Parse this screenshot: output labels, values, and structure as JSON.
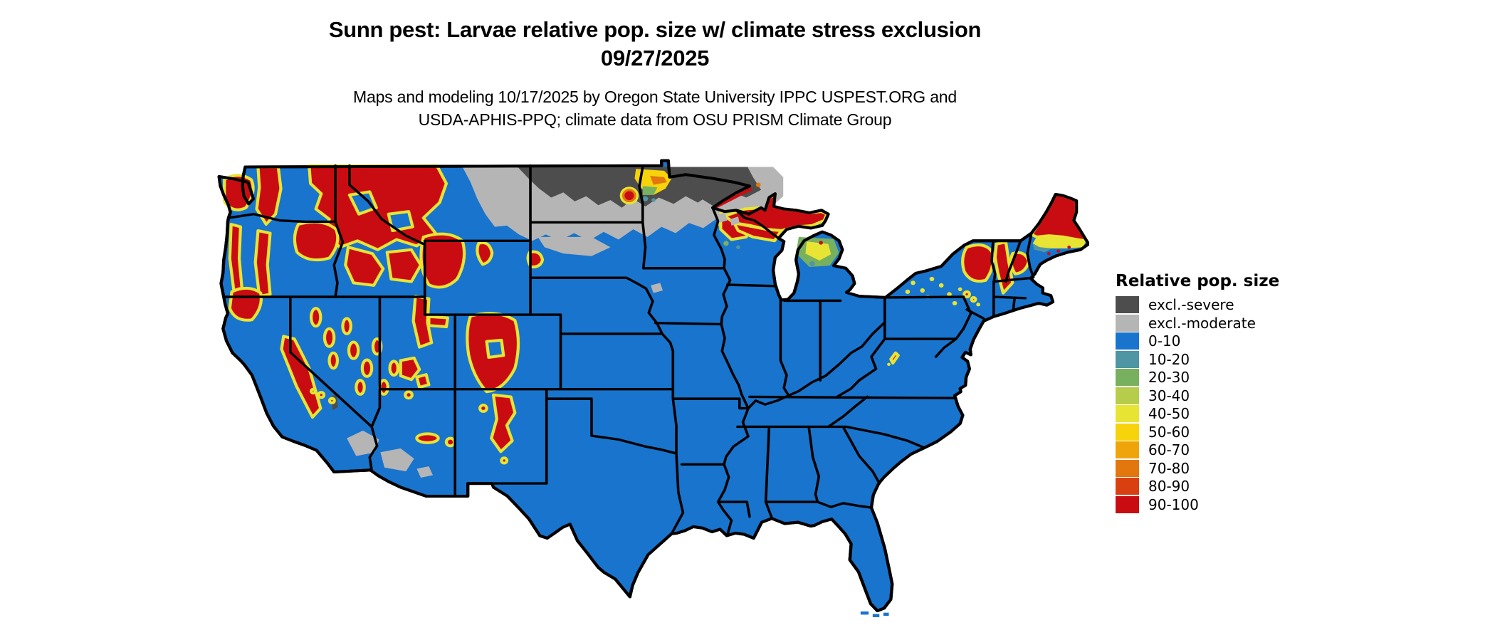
{
  "title": {
    "line1": "Sunn pest: Larvae relative pop. size w/ climate stress exclusion",
    "line2": "09/27/2025"
  },
  "subtitle": {
    "line1": "Maps and modeling 10/17/2025 by Oregon State University IPPC USPEST.ORG and",
    "line2": "USDA-APHIS-PPQ; climate data from OSU PRISM Climate Group"
  },
  "legend": {
    "title": "Relative pop. size",
    "items": [
      {
        "label": "excl.-severe",
        "color": "#4D4D4D"
      },
      {
        "label": "excl.-moderate",
        "color": "#B5B5B5"
      },
      {
        "label": "0-10",
        "color": "#1874CD"
      },
      {
        "label": "10-20",
        "color": "#4F95A3"
      },
      {
        "label": "20-30",
        "color": "#77B05F"
      },
      {
        "label": "30-40",
        "color": "#B6CC4B"
      },
      {
        "label": "40-50",
        "color": "#E8E434"
      },
      {
        "label": "50-60",
        "color": "#F6D30B"
      },
      {
        "label": "60-70",
        "color": "#EFA50A"
      },
      {
        "label": "70-80",
        "color": "#E2770D"
      },
      {
        "label": "80-90",
        "color": "#D9400F"
      },
      {
        "label": "90-100",
        "color": "#C90C11"
      }
    ]
  },
  "map": {
    "area": "Contiguous United States with state boundaries",
    "border_color": "#000000",
    "water_color": "#FFFFFF",
    "base_fill_category": "0-10",
    "visible_patterns": [
      {
        "region": "Most of central, southern and eastern US",
        "category": "0-10"
      },
      {
        "region": "Pacific Northwest mountains, N Idaho, W Montana",
        "category": "90-100"
      },
      {
        "region": "Sierra Nevada, Nevada ranges, Utah, Colorado Rockies, N New Mexico",
        "category": "90-100"
      },
      {
        "region": "Northern Montana / North Dakota / N Minnesota band",
        "category": "excl.-severe"
      },
      {
        "region": "Fringe around northern exclusion band and SW deserts",
        "category": "excl.-moderate"
      },
      {
        "region": "Upper Peninsula Michigan and N Wisconsin",
        "category": "90-100"
      },
      {
        "region": "NE North Dakota / NW Minnesota hotspot",
        "category": "50-60"
      },
      {
        "region": "Adirondacks, Vermont, New Hampshire, N Maine",
        "category": "90-100"
      },
      {
        "region": "N Lower Michigan and mid-Maine transition",
        "category": "40-50"
      }
    ]
  }
}
